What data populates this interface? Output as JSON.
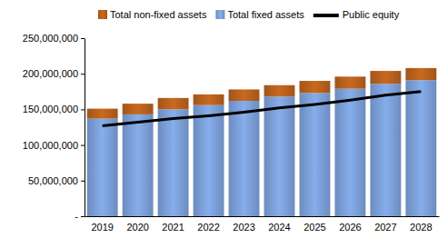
{
  "chart_data": {
    "type": "bar",
    "stacked": true,
    "grid": false,
    "legend": "top",
    "categories": [
      "2019",
      "2020",
      "2021",
      "2022",
      "2023",
      "2024",
      "2025",
      "2026",
      "2027",
      "2028"
    ],
    "series": [
      {
        "name": "Total fixed assets",
        "type": "bar",
        "color": "#7b9fd8",
        "values": [
          137000000,
          143000000,
          150000000,
          156000000,
          162000000,
          168000000,
          173000000,
          179000000,
          186000000,
          191000000
        ]
      },
      {
        "name": "Total non-fixed assets",
        "type": "bar",
        "color": "#b8601c",
        "values": [
          14000000,
          15000000,
          16000000,
          15000000,
          16000000,
          16000000,
          17000000,
          17000000,
          18000000,
          17000000
        ]
      },
      {
        "name": "Public equity",
        "type": "line",
        "color": "#000000",
        "values": [
          127000000,
          132000000,
          137000000,
          141000000,
          146000000,
          152000000,
          157000000,
          163000000,
          170000000,
          175000000
        ]
      }
    ],
    "ylim": [
      0,
      250000000
    ],
    "yticks": [
      {
        "value": 0,
        "label": "-"
      },
      {
        "value": 50000000,
        "label": "50,000,000"
      },
      {
        "value": 100000000,
        "label": "100,000,000"
      },
      {
        "value": 150000000,
        "label": "150,000,000"
      },
      {
        "value": 200000000,
        "label": "200,000,000"
      },
      {
        "value": 250000000,
        "label": "250,000,000"
      }
    ]
  }
}
